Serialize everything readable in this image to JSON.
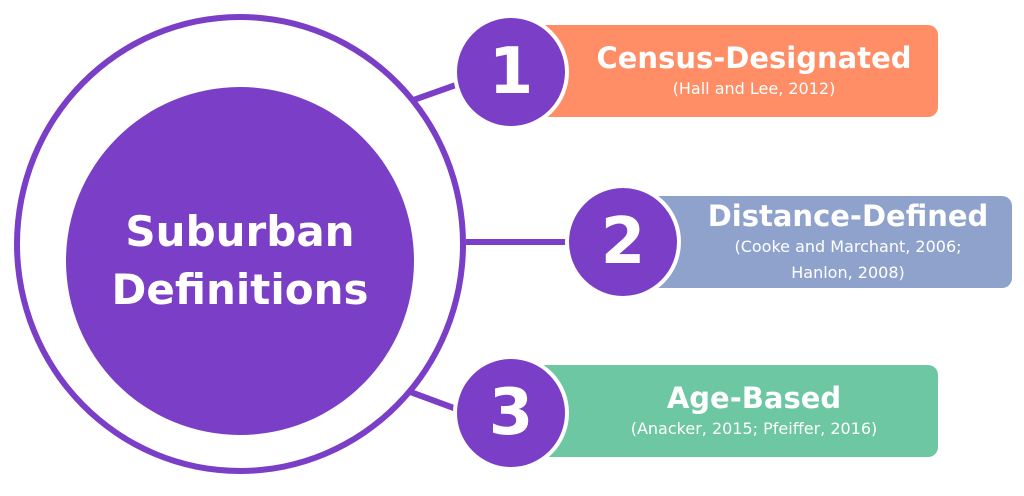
{
  "center": {
    "line1": "Suburban",
    "line2": "Definitions"
  },
  "items": [
    {
      "number": "1",
      "heading": "Census-Designated",
      "citations": [
        "(Hall and Lee, 2012)"
      ],
      "color": "#ff8d66"
    },
    {
      "number": "2",
      "heading": "Distance-Defined",
      "citations": [
        "(Cooke and Marchant, 2006;",
        "Hanlon, 2008)"
      ],
      "color": "#8fa2cc"
    },
    {
      "number": "3",
      "heading": "Age-Based",
      "citations": [
        "(Anacker, 2015; Pfeiffer, 2016)"
      ],
      "color": "#6cc7a2"
    }
  ],
  "colors": {
    "primary": "#7a3fc6"
  }
}
